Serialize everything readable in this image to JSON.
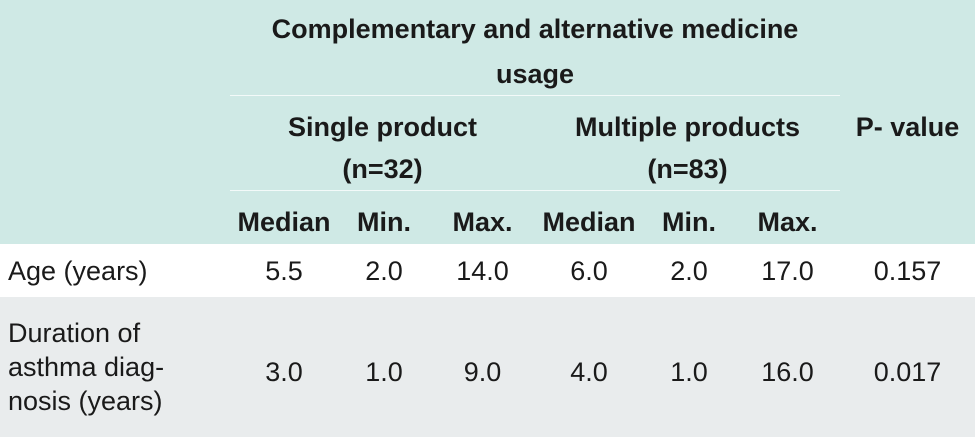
{
  "table": {
    "group_header": "Complementary and alternative medicine usage",
    "group_header_line1": "Complementary and alternative medicine",
    "group_header_line2": "usage",
    "single": {
      "line1": "Single product",
      "line2": "(n=32)"
    },
    "multiple": {
      "line1": "Multiple products",
      "line2": "(n=83)"
    },
    "pvalue_header": "P- value",
    "subheaders": [
      "Median",
      "Min.",
      "Max.",
      "Median",
      "Min.",
      "Max."
    ],
    "rows": [
      {
        "label": "Age (years)",
        "values": [
          "5.5",
          "2.0",
          "14.0",
          "6.0",
          "2.0",
          "17.0"
        ],
        "p": "0.157"
      },
      {
        "label": "Duration of\nasthma diag-\nnosis (years)",
        "values": [
          "3.0",
          "1.0",
          "9.0",
          "4.0",
          "1.0",
          "16.0"
        ],
        "p": "0.017"
      }
    ],
    "colors": {
      "header_bg": "#cfe9e5",
      "row_alt_bg": "#e9eced"
    }
  }
}
